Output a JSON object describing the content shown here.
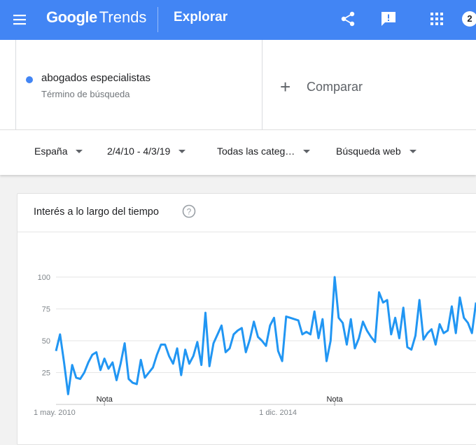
{
  "header": {
    "logo_google": "Google",
    "logo_trends": "Trends",
    "section": "Explorar",
    "badge": "2",
    "icons": [
      "menu-icon",
      "share-icon",
      "feedback-icon",
      "apps-grid-icon"
    ]
  },
  "search": {
    "term": "abogados especialistas",
    "term_type": "Término de búsqueda",
    "term_color": "#4285f4",
    "compare_label": "Comparar"
  },
  "filters": {
    "region": "España",
    "date_range": "2/4/10 - 4/3/19",
    "category": "Todas las categ…",
    "search_type": "Búsqueda web"
  },
  "card": {
    "title": "Interés a lo largo del tiempo"
  },
  "chart_data": {
    "type": "line",
    "series": [
      {
        "name": "abogados especialistas",
        "color": "#2196f3",
        "values": [
          42,
          55,
          33,
          8,
          31,
          21,
          20,
          25,
          33,
          39,
          41,
          27,
          36,
          28,
          33,
          19,
          32,
          48,
          20,
          17,
          16,
          35,
          21,
          25,
          29,
          39,
          47,
          47,
          38,
          32,
          44,
          23,
          43,
          32,
          38,
          49,
          31,
          72,
          30,
          48,
          55,
          62,
          41,
          44,
          55,
          58,
          60,
          41,
          51,
          65,
          53,
          50,
          46,
          62,
          68,
          42,
          34,
          69,
          68,
          67,
          66,
          55,
          57,
          55,
          73,
          52,
          67,
          34,
          50,
          100,
          68,
          64,
          47,
          67,
          44,
          52,
          65,
          58,
          53,
          49,
          88,
          80,
          82,
          55,
          68,
          52,
          76,
          45,
          43,
          54,
          82,
          51,
          56,
          59,
          47,
          63,
          56,
          58,
          77,
          56,
          84,
          68,
          64,
          56,
          80
        ]
      }
    ],
    "y_ticks": [
      "100",
      "75",
      "50",
      "25"
    ],
    "ylim": [
      0,
      100
    ],
    "x_ticks": [
      "1 may. 2010",
      "1 dic. 2014"
    ],
    "notes": [
      "Nota",
      "Nota"
    ],
    "grid": true
  }
}
